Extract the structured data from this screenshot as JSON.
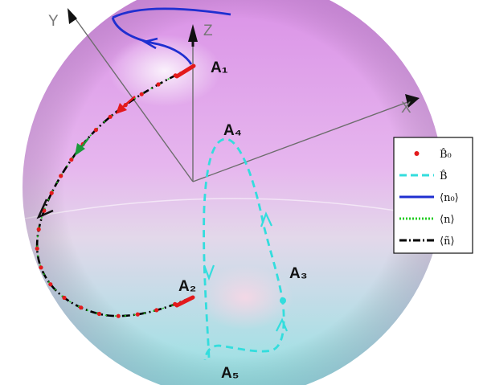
{
  "axes": {
    "x": "X",
    "y": "Y",
    "z": "Z"
  },
  "points": {
    "a1": "A₁",
    "a2": "A₂",
    "a3": "A₃",
    "a4": "A₄",
    "a5": "A₅"
  },
  "legend": [
    {
      "id": "b0-hat",
      "label": "B̂₀",
      "color": "#e31a1c",
      "style": "dots"
    },
    {
      "id": "b-hat",
      "label": "B̂",
      "color": "#33dddd",
      "style": "dashed"
    },
    {
      "id": "n0-avg",
      "label": "⟨n₀⟩",
      "color": "#1f2fd0",
      "style": "solid"
    },
    {
      "id": "n-avg",
      "label": "⟨n⟩",
      "color": "#22cc22",
      "style": "dotted"
    },
    {
      "id": "n-tilde-avg",
      "label": "⟨ñ⟩",
      "color": "#000000",
      "style": "dash-dot"
    }
  ],
  "colors": {
    "sphere_top": "#d98ee6",
    "sphere_bottom": "#8fe3e3",
    "axis": "#6d6d6d"
  }
}
